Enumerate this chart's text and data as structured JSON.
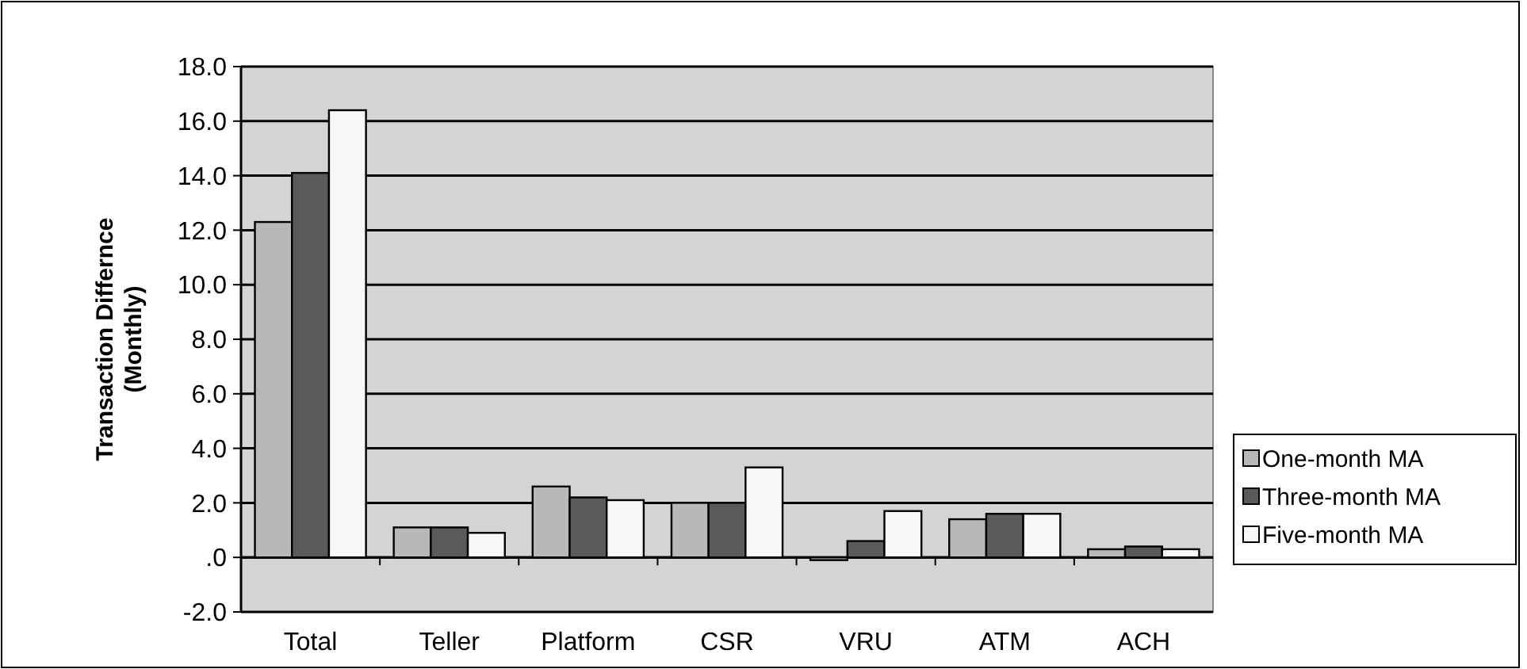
{
  "chart_data": {
    "type": "bar",
    "ylabel": "Transaction Differnce\n(Monthly)",
    "categories": [
      "Total",
      "Teller",
      "Platform",
      "CSR",
      "VRU",
      "ATM",
      "ACH"
    ],
    "series": [
      {
        "name": "One-month MA",
        "color": "#b8b8b8",
        "values": [
          12.3,
          1.1,
          2.6,
          2.0,
          -0.1,
          1.4,
          0.3
        ]
      },
      {
        "name": "Three-month MA",
        "color": "#5a5a5a",
        "values": [
          14.1,
          1.1,
          2.2,
          2.0,
          0.6,
          1.6,
          0.4
        ]
      },
      {
        "name": "Five-month MA",
        "color": "#f8f8f8",
        "values": [
          16.4,
          0.9,
          2.1,
          3.3,
          1.7,
          1.6,
          0.3
        ]
      }
    ],
    "ylim": [
      -2,
      18
    ],
    "yticks": [
      {
        "value": -2,
        "label": "-2.0"
      },
      {
        "value": 0,
        "label": ".0"
      },
      {
        "value": 2,
        "label": "2.0"
      },
      {
        "value": 4,
        "label": "4.0"
      },
      {
        "value": 6,
        "label": "6.0"
      },
      {
        "value": 8,
        "label": "8.0"
      },
      {
        "value": 10,
        "label": "10.0"
      },
      {
        "value": 12,
        "label": "12.0"
      },
      {
        "value": 14,
        "label": "14.0"
      },
      {
        "value": 16,
        "label": "16.0"
      },
      {
        "value": 18,
        "label": "18.0"
      }
    ],
    "grid": "y",
    "legend": "right"
  }
}
